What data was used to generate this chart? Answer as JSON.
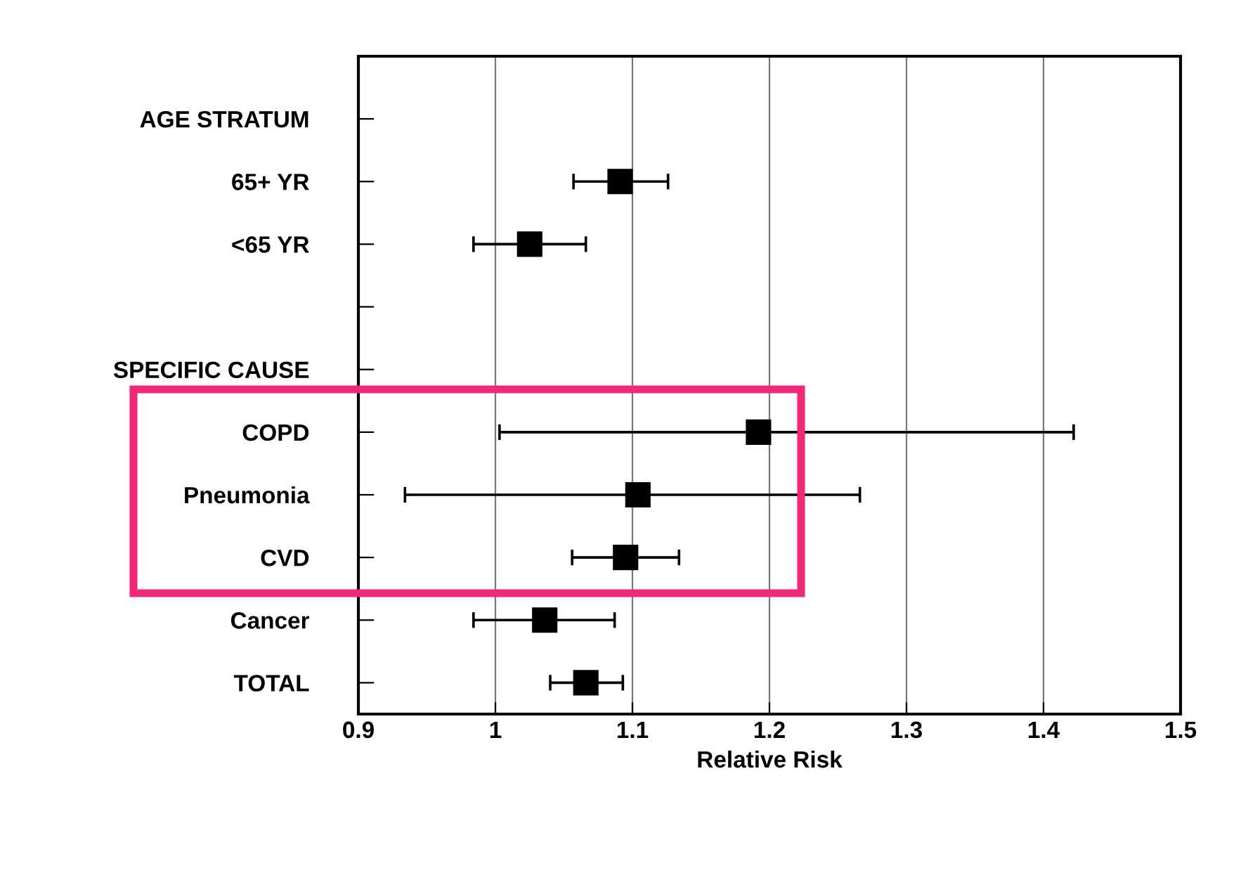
{
  "chart_data": {
    "type": "scatter",
    "orientation": "horizontal",
    "xlabel": "Relative Risk",
    "categories": [
      "AGE STRATUM",
      "65+ YR",
      "<65 YR",
      null,
      "SPECIFIC CAUSE",
      "COPD",
      "Pneumonia",
      "CVD",
      "Cancer",
      "TOTAL"
    ],
    "values": [
      null,
      1.091,
      1.025,
      null,
      null,
      1.192,
      1.104,
      1.095,
      1.036,
      1.066
    ],
    "errors": [
      null,
      [
        1.057,
        1.126
      ],
      [
        0.984,
        1.066
      ],
      null,
      null,
      [
        1.003,
        1.422
      ],
      [
        0.934,
        1.266
      ],
      [
        1.056,
        1.134
      ],
      [
        0.984,
        1.087
      ],
      [
        1.04,
        1.093
      ]
    ],
    "color": "#000000",
    "marker": "square",
    "xlim": [
      0.9,
      1.5
    ],
    "xticks": [
      0.9,
      1,
      1.1,
      1.2,
      1.3,
      1.4,
      1.5
    ],
    "grid": "x"
  }
}
